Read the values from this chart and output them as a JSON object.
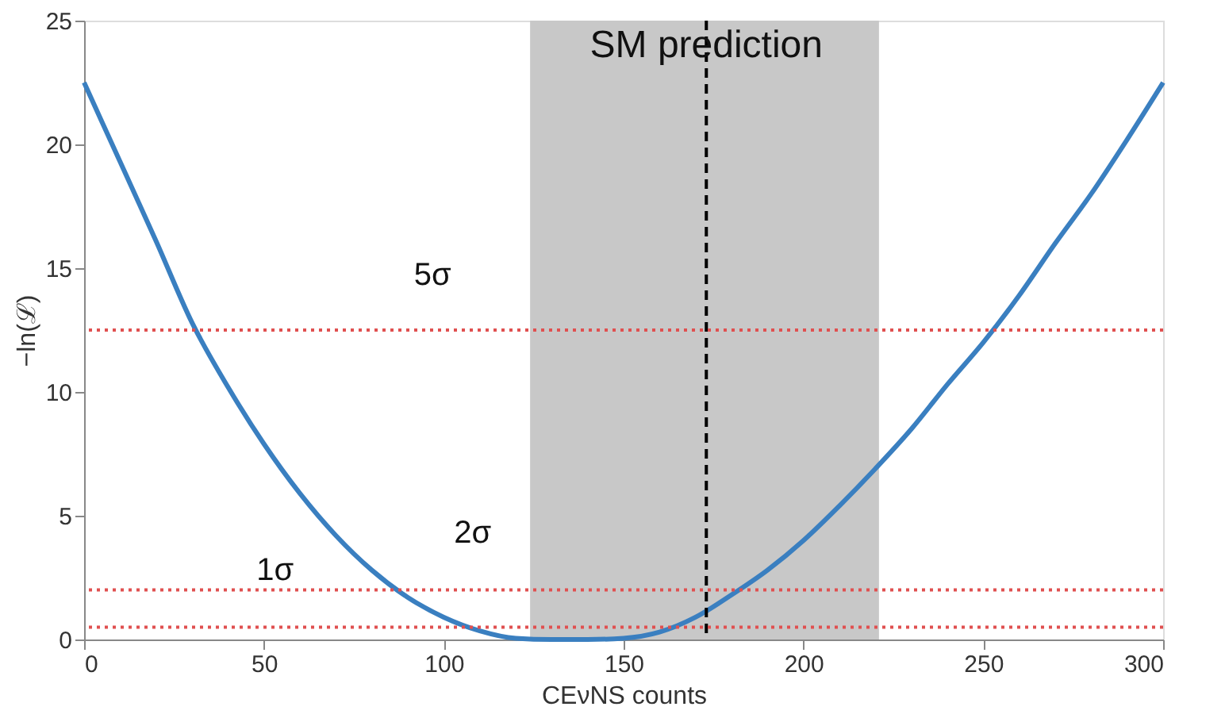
{
  "chart_data": {
    "type": "line",
    "xlabel": "CEνNS counts",
    "ylabel": "−ln(ℒ)",
    "x": [
      0,
      10,
      20,
      30,
      40,
      50,
      60,
      70,
      80,
      90,
      100,
      110,
      120,
      130,
      140,
      150,
      160,
      170,
      180,
      190,
      200,
      210,
      220,
      230,
      240,
      250,
      260,
      270,
      280,
      290,
      300
    ],
    "series": [
      {
        "color": "#3a7fc0",
        "values": [
          22.5,
          19.3,
          16.1,
          12.8,
          10.2,
          7.9,
          5.9,
          4.2,
          2.8,
          1.7,
          0.9,
          0.35,
          0.05,
          0,
          0,
          0.05,
          0.3,
          0.9,
          1.8,
          2.8,
          4.0,
          5.4,
          6.9,
          8.5,
          10.3,
          12.0,
          13.9,
          16.0,
          18.0,
          20.2,
          22.5
        ]
      }
    ],
    "xlim": [
      0,
      300
    ],
    "xticks": [
      0,
      50,
      100,
      150,
      200,
      250,
      300
    ],
    "ylim": [
      0,
      25
    ],
    "yticks": [
      0,
      5,
      10,
      15,
      20,
      25
    ],
    "grid": false,
    "marker": "none",
    "line_style": "solid",
    "bands": [
      {
        "axis": "x",
        "from": 124,
        "to": 221,
        "color": "#c8c8c8"
      }
    ],
    "ref_lines": [
      {
        "axis": "x",
        "value": 173,
        "label": "SM prediction",
        "color": "#000000",
        "line_style": "dashed"
      },
      {
        "axis": "y",
        "value": 0.5,
        "color": "#e05050",
        "line_style": "dotted"
      },
      {
        "axis": "y",
        "value": 2,
        "color": "#e05050",
        "line_style": "dotted"
      },
      {
        "axis": "y",
        "value": 12.5,
        "color": "#e05050",
        "line_style": "dotted"
      }
    ],
    "annotations": [
      "1σ",
      "2σ",
      "5σ"
    ]
  }
}
